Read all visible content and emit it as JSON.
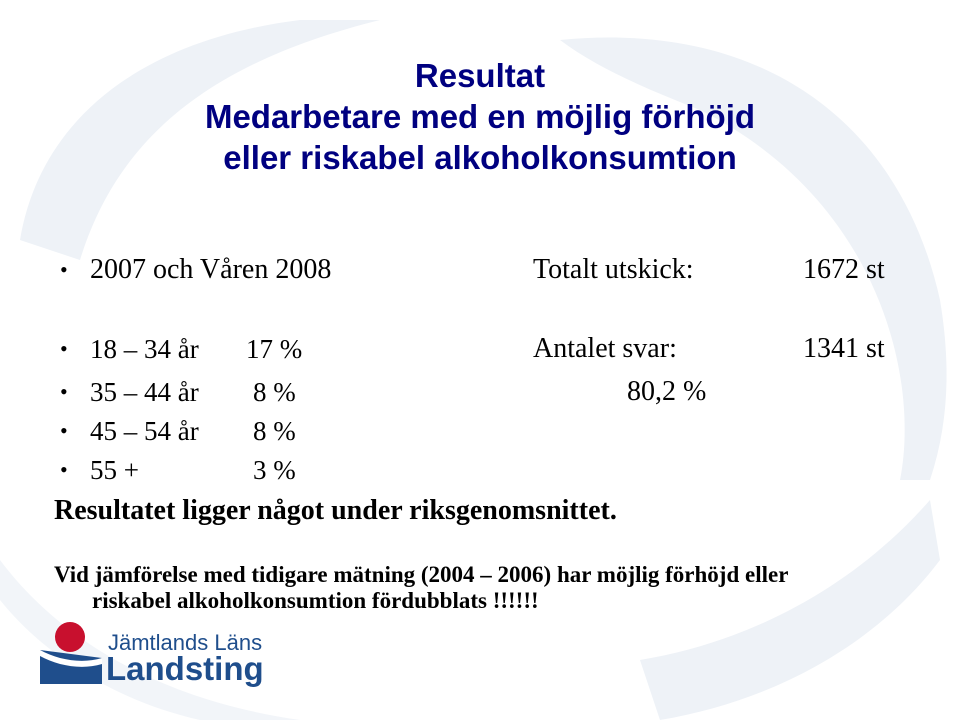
{
  "title": {
    "line1": "Resultat",
    "line2": "Medarbetare med en möjlig förhöjd",
    "line3": "eller riskabel alkoholkonsumtion"
  },
  "bullet_symbol": "•",
  "rows": {
    "period": "2007 och Våren 2008",
    "total_label": "Totalt utskick:",
    "total_value": "1672 st",
    "age1_range": "18 – 34 år",
    "age1_pct": "17 %",
    "answers_label": "Antalet svar:",
    "answers_value": "1341 st",
    "age2_range": "35 – 44 år",
    "age2_pct": "8 %",
    "response_rate": "80,2 %",
    "age3_range": "45 – 54 år",
    "age3_pct": "8 %",
    "age4_range": "55 +",
    "age4_pct": "3 %"
  },
  "conclusion": "Resultatet ligger något under riksgenomsnittet.",
  "comparison": {
    "line1": "Vid jämförelse med tidigare mätning (2004 – 2006) har möjlig förhöjd eller",
    "line2": "riskabel alkoholkonsumtion fördubblats !!!!!!"
  },
  "logo": {
    "line1": "Jämtlands Läns",
    "line2": "Landsting",
    "colors": {
      "red": "#c8102e",
      "blue": "#1f4e8c"
    }
  },
  "colors": {
    "title": "#000080",
    "background_swirl": "#e8edf3"
  }
}
